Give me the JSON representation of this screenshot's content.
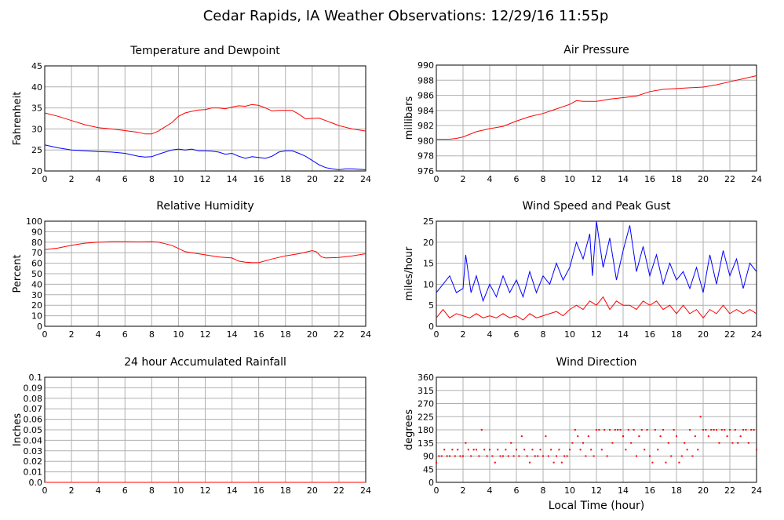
{
  "title": "Cedar Rapids, IA Weather Observations: 12/29/16 11:55p",
  "xlabel": "Local Time (hour)",
  "chart_data": [
    {
      "id": "temp",
      "type": "line",
      "title": "Temperature and Dewpoint",
      "ylabel": "Fahrenheit",
      "xlim": [
        0,
        24
      ],
      "ylim": [
        20,
        45
      ],
      "yticks": [
        20,
        25,
        30,
        35,
        40,
        45
      ],
      "xticks": [
        0,
        2,
        4,
        6,
        8,
        10,
        12,
        14,
        16,
        18,
        20,
        22,
        24
      ],
      "series": [
        {
          "color": "#ff0000",
          "x": [
            0,
            1,
            2,
            3,
            4,
            5,
            6,
            7,
            7.5,
            8,
            8.5,
            9,
            9.5,
            10,
            10.5,
            11,
            11.5,
            12,
            12.5,
            13,
            13.5,
            14,
            14.5,
            15,
            15.5,
            16,
            16.5,
            17,
            17.5,
            18,
            18.5,
            19,
            19.5,
            20,
            20.5,
            21,
            21.5,
            22,
            22.5,
            23,
            24
          ],
          "y": [
            33.8,
            33,
            32,
            31,
            30.3,
            30,
            29.6,
            29.2,
            28.8,
            28.8,
            29.5,
            30.5,
            31.5,
            33,
            33.8,
            34.2,
            34.5,
            34.6,
            35,
            35,
            34.8,
            35.2,
            35.5,
            35.4,
            35.8,
            35.6,
            35,
            34.3,
            34.4,
            34.4,
            34.4,
            33.5,
            32.4,
            32.5,
            32.6,
            32,
            31.4,
            30.8,
            30.4,
            30,
            29.5
          ]
        },
        {
          "color": "#0000ff",
          "x": [
            0,
            1,
            2,
            3,
            4,
            5,
            6,
            7,
            7.5,
            8,
            8.5,
            9,
            9.5,
            10,
            10.5,
            11,
            11.5,
            12,
            12.5,
            13,
            13.5,
            14,
            14.5,
            15,
            15.5,
            16,
            16.5,
            17,
            17.5,
            18,
            18.5,
            19,
            19.5,
            20,
            20.5,
            21,
            21.5,
            22,
            22.5,
            23,
            24
          ],
          "y": [
            26.2,
            25.5,
            25,
            24.8,
            24.6,
            24.5,
            24.2,
            23.5,
            23.3,
            23.4,
            24,
            24.5,
            25,
            25.2,
            25,
            25.2,
            24.8,
            24.8,
            24.7,
            24.5,
            24,
            24.2,
            23.5,
            23,
            23.4,
            23.2,
            23,
            23.5,
            24.5,
            24.8,
            24.8,
            24.2,
            23.5,
            22.5,
            21.5,
            20.8,
            20.5,
            20.3,
            20.5,
            20.5,
            20.3
          ]
        }
      ]
    },
    {
      "id": "pressure",
      "type": "line",
      "title": "Air Pressure",
      "ylabel": "millibars",
      "xlim": [
        0,
        24
      ],
      "ylim": [
        976,
        990
      ],
      "yticks": [
        976,
        978,
        980,
        982,
        984,
        986,
        988,
        990
      ],
      "xticks": [
        0,
        2,
        4,
        6,
        8,
        10,
        12,
        14,
        16,
        18,
        20,
        22,
        24
      ],
      "series": [
        {
          "color": "#ff0000",
          "x": [
            0,
            1,
            1.5,
            2,
            3,
            4,
            5,
            6,
            7,
            8,
            9,
            10,
            10.5,
            11,
            12,
            13,
            14,
            15,
            16,
            17,
            18,
            19,
            20,
            21,
            22,
            23,
            24
          ],
          "y": [
            980.2,
            980.2,
            980.3,
            980.5,
            981.2,
            981.6,
            981.9,
            982.6,
            983.2,
            983.6,
            984.2,
            984.8,
            985.3,
            985.2,
            985.2,
            985.5,
            985.7,
            985.9,
            986.5,
            986.8,
            986.9,
            987,
            987.1,
            987.4,
            987.8,
            988.2,
            988.6
          ]
        }
      ]
    },
    {
      "id": "humidity",
      "type": "line",
      "title": "Relative Humidity",
      "ylabel": "Percent",
      "xlim": [
        0,
        24
      ],
      "ylim": [
        0,
        100
      ],
      "yticks": [
        0,
        10,
        20,
        30,
        40,
        50,
        60,
        70,
        80,
        90,
        100
      ],
      "xticks": [
        0,
        2,
        4,
        6,
        8,
        10,
        12,
        14,
        16,
        18,
        20,
        22,
        24
      ],
      "series": [
        {
          "color": "#ff0000",
          "x": [
            0,
            1,
            2,
            3,
            4,
            5,
            6,
            7,
            8,
            8.5,
            9,
            9.5,
            10,
            10.5,
            11,
            12,
            13,
            14,
            14.5,
            15,
            15.5,
            16,
            17,
            18,
            19,
            20,
            20.3,
            20.7,
            21,
            22,
            23,
            24
          ],
          "y": [
            73,
            74.5,
            77,
            79,
            80,
            80.5,
            80.5,
            80.3,
            80.5,
            80,
            78.5,
            77,
            74,
            71,
            70,
            68,
            66,
            65,
            62,
            61,
            60.5,
            60.5,
            64,
            67,
            69,
            72,
            71,
            66,
            65,
            65.5,
            67,
            69
          ]
        }
      ]
    },
    {
      "id": "wind",
      "type": "line",
      "title": "Wind Speed and Peak Gust",
      "ylabel": "miles/hour",
      "xlim": [
        0,
        24
      ],
      "ylim": [
        0,
        25
      ],
      "yticks": [
        0,
        5,
        10,
        15,
        20,
        25
      ],
      "xticks": [
        0,
        2,
        4,
        6,
        8,
        10,
        12,
        14,
        16,
        18,
        20,
        22,
        24
      ],
      "series": [
        {
          "color": "#0000ff",
          "x": [
            0,
            0.5,
            1,
            1.5,
            2,
            2.2,
            2.6,
            3,
            3.5,
            4,
            4.5,
            5,
            5.5,
            6,
            6.5,
            7,
            7.5,
            8,
            8.5,
            9,
            9.5,
            10,
            10.5,
            11,
            11.5,
            11.7,
            12,
            12.5,
            13,
            13.5,
            14,
            14.5,
            15,
            15.5,
            16,
            16.5,
            17,
            17.5,
            18,
            18.5,
            19,
            19.5,
            20,
            20.5,
            21,
            21.5,
            22,
            22.5,
            23,
            23.5,
            24
          ],
          "y": [
            8,
            10,
            12,
            8,
            9,
            17,
            8,
            12,
            6,
            10,
            7,
            12,
            8,
            11,
            7,
            13,
            8,
            12,
            10,
            15,
            11,
            14,
            20,
            16,
            22,
            12,
            25,
            14,
            21,
            11,
            18,
            24,
            13,
            19,
            12,
            17,
            10,
            15,
            11,
            13,
            9,
            14,
            8,
            17,
            10,
            18,
            12,
            16,
            9,
            15,
            13
          ]
        },
        {
          "color": "#ff0000",
          "x": [
            0,
            0.5,
            1,
            1.5,
            2,
            2.5,
            3,
            3.5,
            4,
            4.5,
            5,
            5.5,
            6,
            6.5,
            7,
            7.5,
            8,
            8.5,
            9,
            9.5,
            10,
            10.5,
            11,
            11.5,
            12,
            12.5,
            13,
            13.5,
            14,
            14.5,
            15,
            15.5,
            16,
            16.5,
            17,
            17.5,
            18,
            18.5,
            19,
            19.5,
            20,
            20.5,
            21,
            21.5,
            22,
            22.5,
            23,
            23.5,
            24
          ],
          "y": [
            2,
            4,
            2,
            3,
            2.5,
            2,
            3,
            2,
            2.5,
            2,
            3,
            2,
            2.5,
            1.5,
            3,
            2,
            2.5,
            3,
            3.5,
            2.5,
            4,
            5,
            4,
            6,
            5,
            7,
            4,
            6,
            5,
            5,
            4,
            6,
            5,
            6,
            4,
            5,
            3,
            5,
            3,
            4,
            2,
            4,
            3,
            5,
            3,
            4,
            3,
            4,
            3
          ]
        }
      ]
    },
    {
      "id": "rain",
      "type": "line",
      "title": "24 hour Accumulated Rainfall",
      "ylabel": "Inches",
      "xlim": [
        0,
        24
      ],
      "ylim": [
        0,
        0.1
      ],
      "yticks": [
        0.0,
        0.01,
        0.02,
        0.03,
        0.04,
        0.05,
        0.06,
        0.07,
        0.08,
        0.09,
        0.1
      ],
      "ytick_labels": [
        "0.0",
        "0.01",
        "0.02",
        "0.03",
        "0.04",
        "0.05",
        "0.06",
        "0.07",
        "0.08",
        "0.09",
        "0.1"
      ],
      "xticks": [
        0,
        2,
        4,
        6,
        8,
        10,
        12,
        14,
        16,
        18,
        20,
        22,
        24
      ],
      "series": [
        {
          "color": "#ff0000",
          "x": [
            0,
            24
          ],
          "y": [
            0,
            0
          ]
        }
      ]
    },
    {
      "id": "direction",
      "type": "scatter",
      "title": "Wind Direction",
      "ylabel": "degrees",
      "xlim": [
        0,
        24
      ],
      "ylim": [
        0,
        360
      ],
      "yticks": [
        0,
        45,
        90,
        135,
        180,
        225,
        270,
        315,
        360
      ],
      "xticks": [
        0,
        2,
        4,
        6,
        8,
        10,
        12,
        14,
        16,
        18,
        20,
        22,
        24
      ],
      "series": [
        {
          "color": "#ff0000",
          "x": [
            0,
            0.2,
            0.4,
            0.6,
            0.8,
            1,
            1.2,
            1.4,
            1.6,
            1.8,
            2,
            2.2,
            2.4,
            2.6,
            2.8,
            3,
            3.2,
            3.4,
            3.6,
            3.8,
            4,
            4.2,
            4.4,
            4.6,
            4.8,
            5,
            5.2,
            5.4,
            5.6,
            5.8,
            6,
            6.2,
            6.4,
            6.6,
            6.8,
            7,
            7.2,
            7.4,
            7.6,
            7.8,
            8,
            8.2,
            8.4,
            8.6,
            8.8,
            9,
            9.2,
            9.4,
            9.6,
            9.8,
            10,
            10.2,
            10.4,
            10.6,
            10.8,
            11,
            11.2,
            11.4,
            11.6,
            11.8,
            12,
            12.2,
            12.4,
            12.6,
            12.8,
            13,
            13.2,
            13.4,
            13.6,
            13.8,
            14,
            14.2,
            14.4,
            14.6,
            14.8,
            15,
            15.2,
            15.4,
            15.6,
            15.8,
            16,
            16.2,
            16.4,
            16.6,
            16.8,
            17,
            17.2,
            17.4,
            17.6,
            17.8,
            18,
            18.2,
            18.4,
            18.6,
            18.8,
            19,
            19.2,
            19.4,
            19.6,
            19.8,
            20,
            20.2,
            20.4,
            20.6,
            20.8,
            21,
            21.2,
            21.4,
            21.6,
            21.8,
            22,
            22.2,
            22.4,
            22.6,
            22.8,
            23,
            23.2,
            23.4,
            23.6,
            23.8,
            24
          ],
          "y": [
            68,
            90,
            90,
            112,
            90,
            90,
            112,
            90,
            112,
            90,
            90,
            135,
            112,
            90,
            112,
            112,
            90,
            180,
            112,
            90,
            112,
            90,
            68,
            112,
            90,
            90,
            112,
            90,
            135,
            90,
            112,
            90,
            158,
            112,
            90,
            68,
            112,
            90,
            90,
            112,
            90,
            158,
            90,
            112,
            68,
            90,
            112,
            68,
            90,
            90,
            112,
            135,
            180,
            158,
            112,
            135,
            90,
            158,
            112,
            90,
            180,
            180,
            112,
            180,
            90,
            180,
            135,
            180,
            180,
            180,
            158,
            112,
            180,
            135,
            180,
            90,
            158,
            180,
            112,
            180,
            90,
            68,
            180,
            112,
            158,
            180,
            68,
            135,
            90,
            180,
            158,
            68,
            90,
            135,
            112,
            180,
            90,
            158,
            112,
            225,
            180,
            180,
            158,
            180,
            180,
            180,
            135,
            180,
            180,
            158,
            180,
            135,
            180,
            135,
            158,
            180,
            180,
            135,
            180,
            180,
            112
          ]
        }
      ]
    }
  ]
}
